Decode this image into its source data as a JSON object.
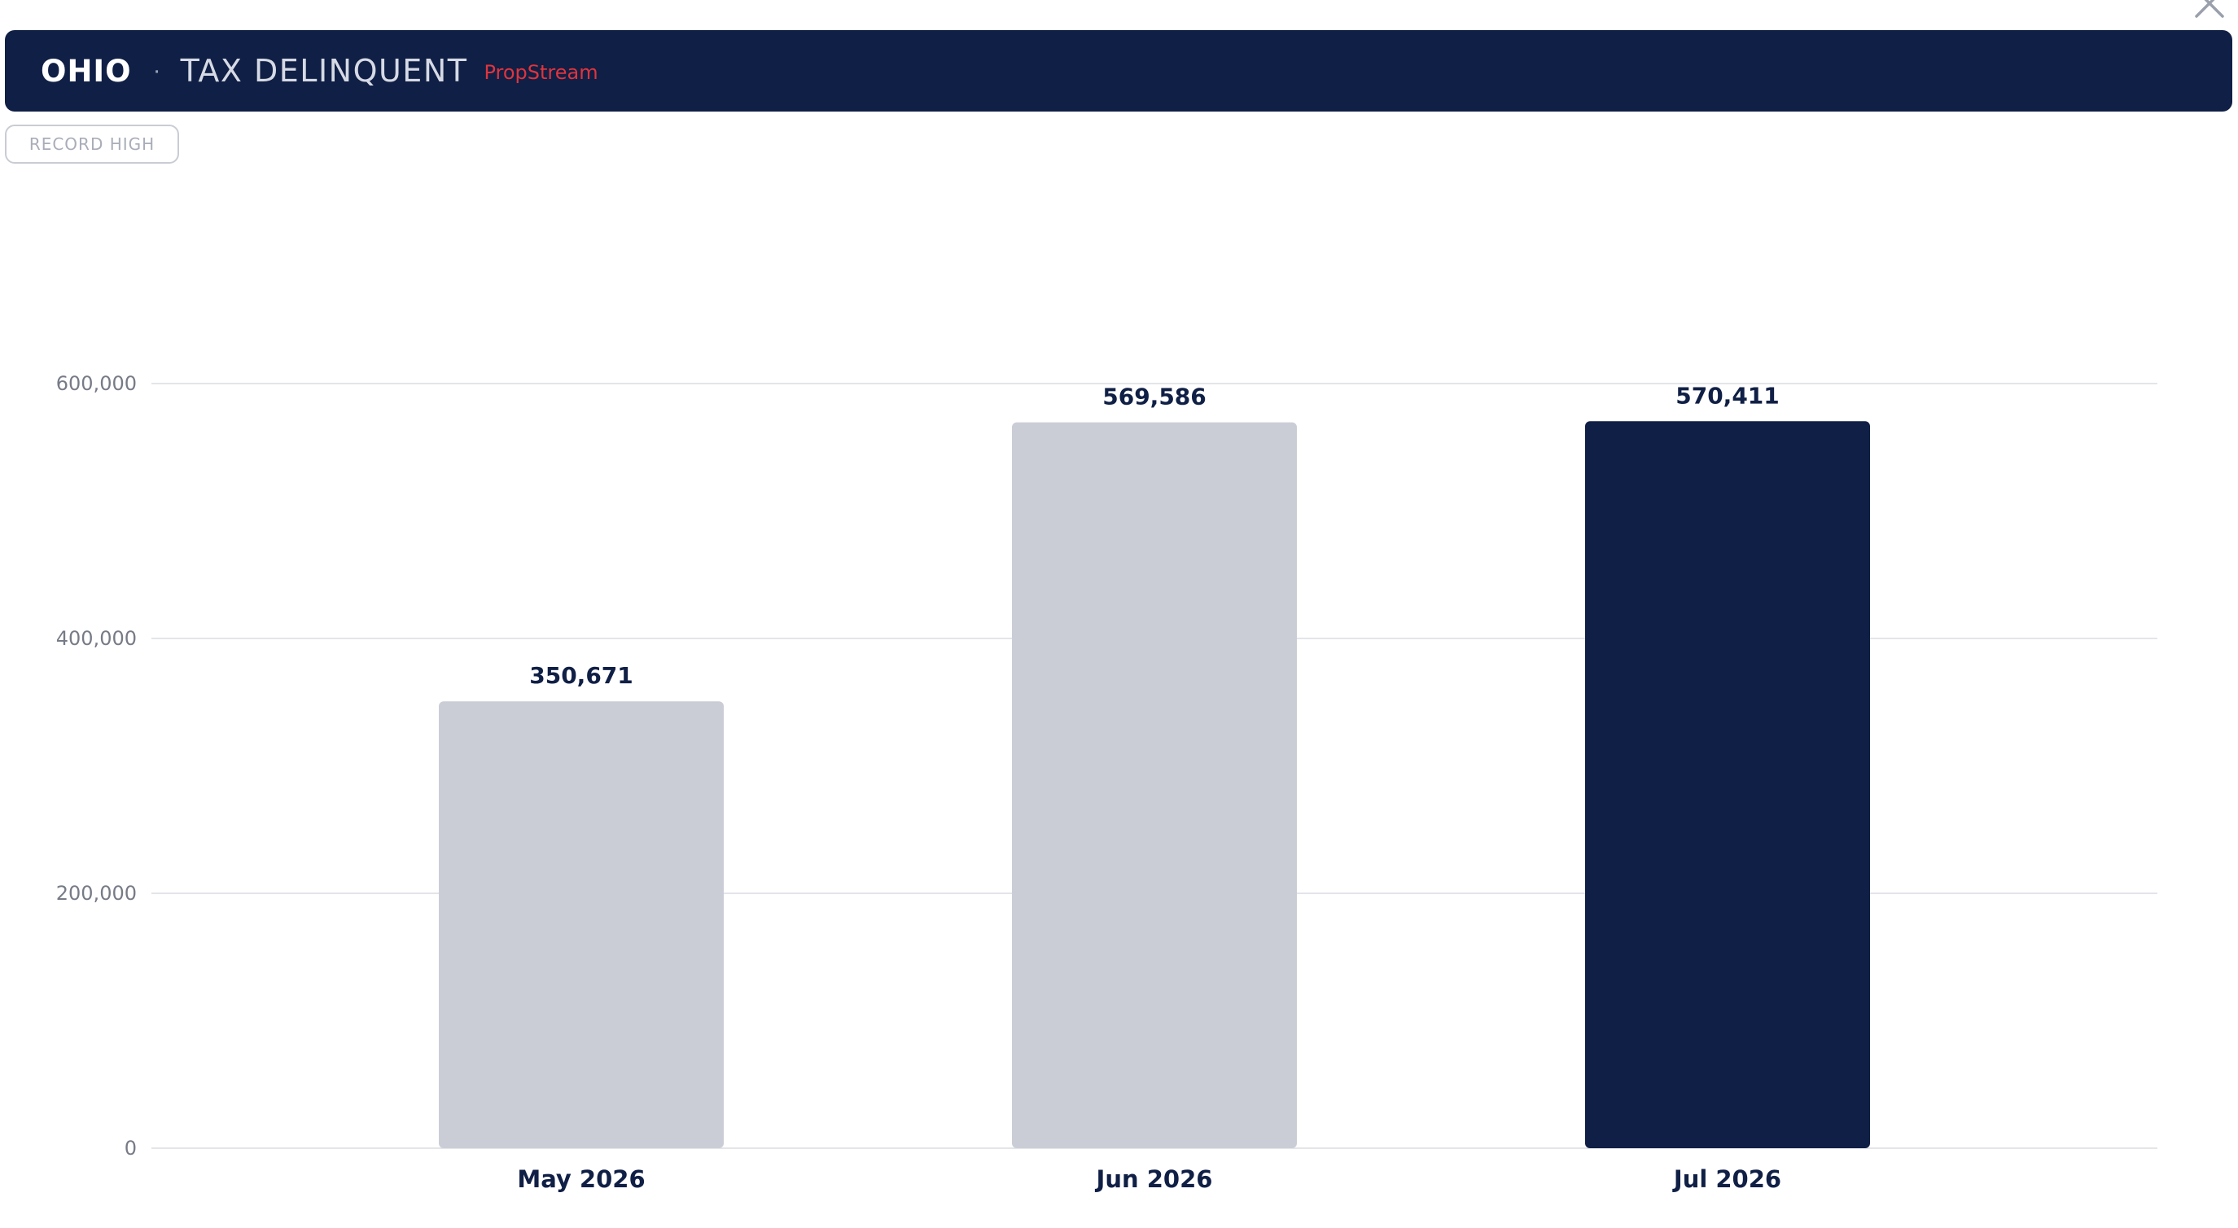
{
  "header": {
    "state": "OHIO",
    "separator": "·",
    "metric": "TAX DELINQUENT",
    "source": "PropStream"
  },
  "badge": {
    "label": "RECORD HIGH"
  },
  "icons": {
    "close": "close-icon"
  },
  "colors": {
    "header_bg": "#101f45",
    "source_text": "#e0343e",
    "bar_default": "#cbcdd6",
    "bar_highlight": "#101f45",
    "gridline": "#e4e5e9"
  },
  "chart_data": {
    "type": "bar",
    "categories": [
      "May 2026",
      "Jun 2026",
      "Jul 2026"
    ],
    "values": [
      350671,
      569586,
      570411
    ],
    "value_labels": [
      "350,671",
      "569,586",
      "570,411"
    ],
    "highlight_index": 2,
    "ylim": [
      0,
      600000
    ],
    "yticks": [
      0,
      200000,
      400000,
      600000
    ],
    "ytick_labels": [
      "0",
      "200,000",
      "400,000",
      "600,000"
    ],
    "grid": true,
    "title": "",
    "xlabel": "",
    "ylabel": ""
  }
}
